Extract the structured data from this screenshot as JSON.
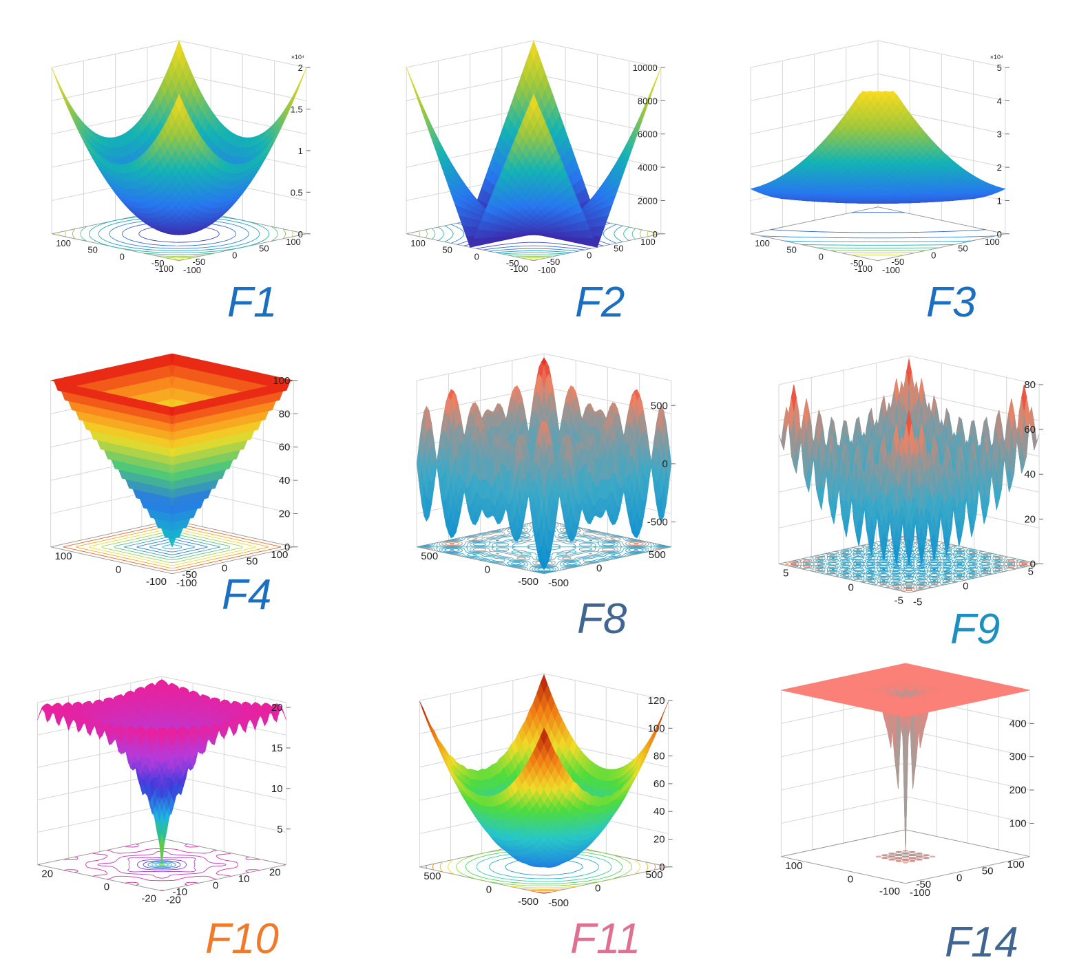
{
  "chart_data": [
    {
      "name": "F1",
      "label_color": "#1a6fc0",
      "type": "surface",
      "palette": "parula",
      "zticks": [
        "0",
        "0.5",
        "1",
        "1.5",
        "2"
      ],
      "zexp": "×10⁴",
      "zlim": [
        0,
        20000
      ],
      "xticks": [
        "-100",
        "-50",
        "0",
        "50",
        "100"
      ],
      "yticks": [
        "-100",
        "-50",
        "0",
        "50",
        "100"
      ],
      "shape": "paraboloid",
      "contour": "rings"
    },
    {
      "name": "F2",
      "label_color": "#1a6fc0",
      "type": "surface",
      "palette": "parula",
      "zticks": [
        "0",
        "2000",
        "4000",
        "6000",
        "8000",
        "10000"
      ],
      "zlim": [
        0,
        10000
      ],
      "xticks": [
        "-100",
        "-50",
        "0",
        "50",
        "100"
      ],
      "yticks": [
        "-100",
        "-50",
        "0",
        "50",
        "100"
      ],
      "shape": "ridges",
      "contour": "rings"
    },
    {
      "name": "F3",
      "label_color": "#1a6fc0",
      "type": "surface",
      "palette": "parula",
      "zticks": [
        "0",
        "1",
        "2",
        "3",
        "4",
        "5"
      ],
      "zexp": "×10⁴",
      "zlim": [
        0,
        50000
      ],
      "xticks": [
        "-100",
        "-50",
        "0",
        "50",
        "100"
      ],
      "yticks": [
        "-100",
        "-50",
        "0",
        "50",
        "100"
      ],
      "shape": "skewbowl",
      "contour": "ellipse"
    },
    {
      "name": "F4",
      "label_color": "#1a6fc0",
      "type": "surface",
      "palette": "jet",
      "zticks": [
        "0",
        "20",
        "40",
        "60",
        "80",
        "100"
      ],
      "zlim": [
        0,
        100
      ],
      "xticks": [
        "-100",
        "0",
        "100"
      ],
      "yticks": [
        "-100",
        "-50",
        "0",
        "50",
        "100"
      ],
      "shape": "pyramid",
      "contour": "squares"
    },
    {
      "name": "F8",
      "label_color": "#3f6590",
      "type": "surface",
      "palette": "cyanred",
      "zticks": [
        "-500",
        "0",
        "500"
      ],
      "zlim": [
        -800,
        800
      ],
      "xticks": [
        "-500",
        "0",
        "500"
      ],
      "yticks": [
        "-500",
        "0",
        "500"
      ],
      "shape": "schwefel",
      "contour": "blobs"
    },
    {
      "name": "F9",
      "label_color": "#1d8fc0",
      "type": "surface",
      "palette": "cyanred",
      "zticks": [
        "0",
        "20",
        "40",
        "60",
        "80"
      ],
      "zlim": [
        0,
        80
      ],
      "xticks": [
        "-5",
        "0",
        "5"
      ],
      "yticks": [
        "-5",
        "0",
        "5"
      ],
      "shape": "rastrigin",
      "contour": "dots"
    },
    {
      "name": "F10",
      "label_color": "#f07a2a",
      "type": "surface",
      "palette": "magenta",
      "zticks": [
        "5",
        "10",
        "15",
        "20"
      ],
      "zlim": [
        0,
        22
      ],
      "xticks": [
        "-20",
        "0",
        "20"
      ],
      "yticks": [
        "-20",
        "-10",
        "0",
        "10",
        "20"
      ],
      "shape": "ackley",
      "contour": "ackley"
    },
    {
      "name": "F11",
      "label_color": "#e07090",
      "type": "surface",
      "palette": "hot",
      "zticks": [
        "0",
        "20",
        "40",
        "60",
        "80",
        "100",
        "120"
      ],
      "zlim": [
        0,
        130
      ],
      "xticks": [
        "-500",
        "0",
        "500"
      ],
      "yticks": [
        "-500",
        "0",
        "500"
      ],
      "shape": "griewank",
      "contour": "rings"
    },
    {
      "name": "F14",
      "label_color": "#3f6590",
      "type": "surface",
      "palette": "salmon",
      "zticks": [
        "100",
        "200",
        "300",
        "400"
      ],
      "zlim": [
        0,
        500
      ],
      "xticks": [
        "-100",
        "0",
        "100"
      ],
      "yticks": [
        "-100",
        "-50",
        "0",
        "50",
        "100"
      ],
      "shape": "foxholes",
      "contour": "holes"
    }
  ]
}
